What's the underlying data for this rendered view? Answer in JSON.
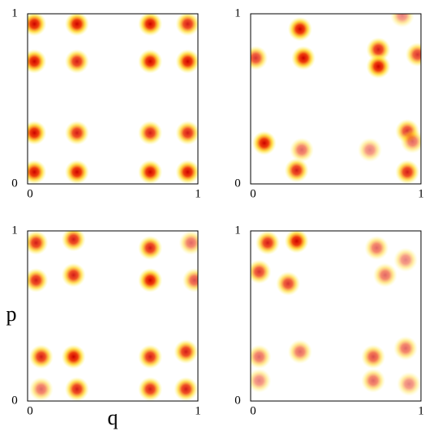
{
  "chart_data": [
    {
      "type": "density",
      "xlim": [
        0,
        1
      ],
      "ylim": [
        0,
        1
      ],
      "xticks": [
        0,
        1
      ],
      "yticks": [
        0,
        1
      ],
      "x": [
        0.04,
        0.29,
        0.72,
        0.94,
        0.04,
        0.29,
        0.72,
        0.94,
        0.04,
        0.29,
        0.72,
        0.94,
        0.04,
        0.29,
        0.72,
        0.94
      ],
      "y": [
        0.94,
        0.94,
        0.94,
        0.94,
        0.72,
        0.72,
        0.72,
        0.72,
        0.3,
        0.3,
        0.3,
        0.3,
        0.07,
        0.07,
        0.07,
        0.07
      ],
      "values": [
        1,
        1,
        1,
        0.9,
        1,
        0.9,
        1,
        1,
        1,
        0.9,
        0.9,
        0.9,
        1,
        1,
        1,
        1
      ]
    },
    {
      "type": "density",
      "xlim": [
        0,
        1
      ],
      "ylim": [
        0,
        1
      ],
      "xticks": [
        0,
        1
      ],
      "yticks": [
        0,
        1
      ],
      "x": [
        0.29,
        0.31,
        0.75,
        0.75,
        0.98,
        0.03,
        0.08,
        0.3,
        0.27,
        0.92,
        0.92,
        0.7,
        0.95,
        0.89
      ],
      "y": [
        0.91,
        0.74,
        0.79,
        0.69,
        0.76,
        0.74,
        0.24,
        0.2,
        0.08,
        0.07,
        0.31,
        0.2,
        0.25,
        0.99
      ],
      "values": [
        1,
        1,
        0.9,
        1,
        0.8,
        0.8,
        1,
        0.6,
        0.9,
        0.9,
        0.8,
        0.5,
        0.6,
        0.5
      ]
    },
    {
      "type": "density",
      "xlim": [
        0,
        1
      ],
      "ylim": [
        0,
        1
      ],
      "xticks": [
        0,
        1
      ],
      "yticks": [
        0,
        1
      ],
      "xlabel": "q",
      "ylabel": "p",
      "x": [
        0.05,
        0.27,
        0.05,
        0.27,
        0.72,
        0.72,
        0.96,
        0.98,
        0.08,
        0.27,
        0.08,
        0.29,
        0.72,
        0.93,
        0.72,
        0.93
      ],
      "y": [
        0.93,
        0.95,
        0.71,
        0.74,
        0.9,
        0.71,
        0.93,
        0.71,
        0.26,
        0.26,
        0.07,
        0.07,
        0.26,
        0.29,
        0.07,
        0.07
      ],
      "values": [
        0.9,
        0.9,
        0.9,
        0.9,
        0.9,
        1,
        0.6,
        0.7,
        0.9,
        1,
        0.6,
        0.9,
        0.9,
        0.9,
        0.9,
        0.9
      ]
    },
    {
      "type": "density",
      "xlim": [
        0,
        1
      ],
      "ylim": [
        0,
        1
      ],
      "xticks": [
        0,
        1
      ],
      "yticks": [
        0,
        1
      ],
      "x": [
        0.1,
        0.27,
        0.05,
        0.22,
        0.74,
        0.79,
        0.91,
        0.05,
        0.29,
        0.72,
        0.91,
        0.05,
        0.72,
        0.93
      ],
      "y": [
        0.93,
        0.94,
        0.76,
        0.69,
        0.9,
        0.74,
        0.83,
        0.26,
        0.29,
        0.26,
        0.31,
        0.12,
        0.12,
        0.1
      ],
      "values": [
        0.9,
        1,
        0.8,
        0.8,
        0.6,
        0.6,
        0.5,
        0.6,
        0.6,
        0.7,
        0.6,
        0.5,
        0.6,
        0.5
      ]
    }
  ]
}
